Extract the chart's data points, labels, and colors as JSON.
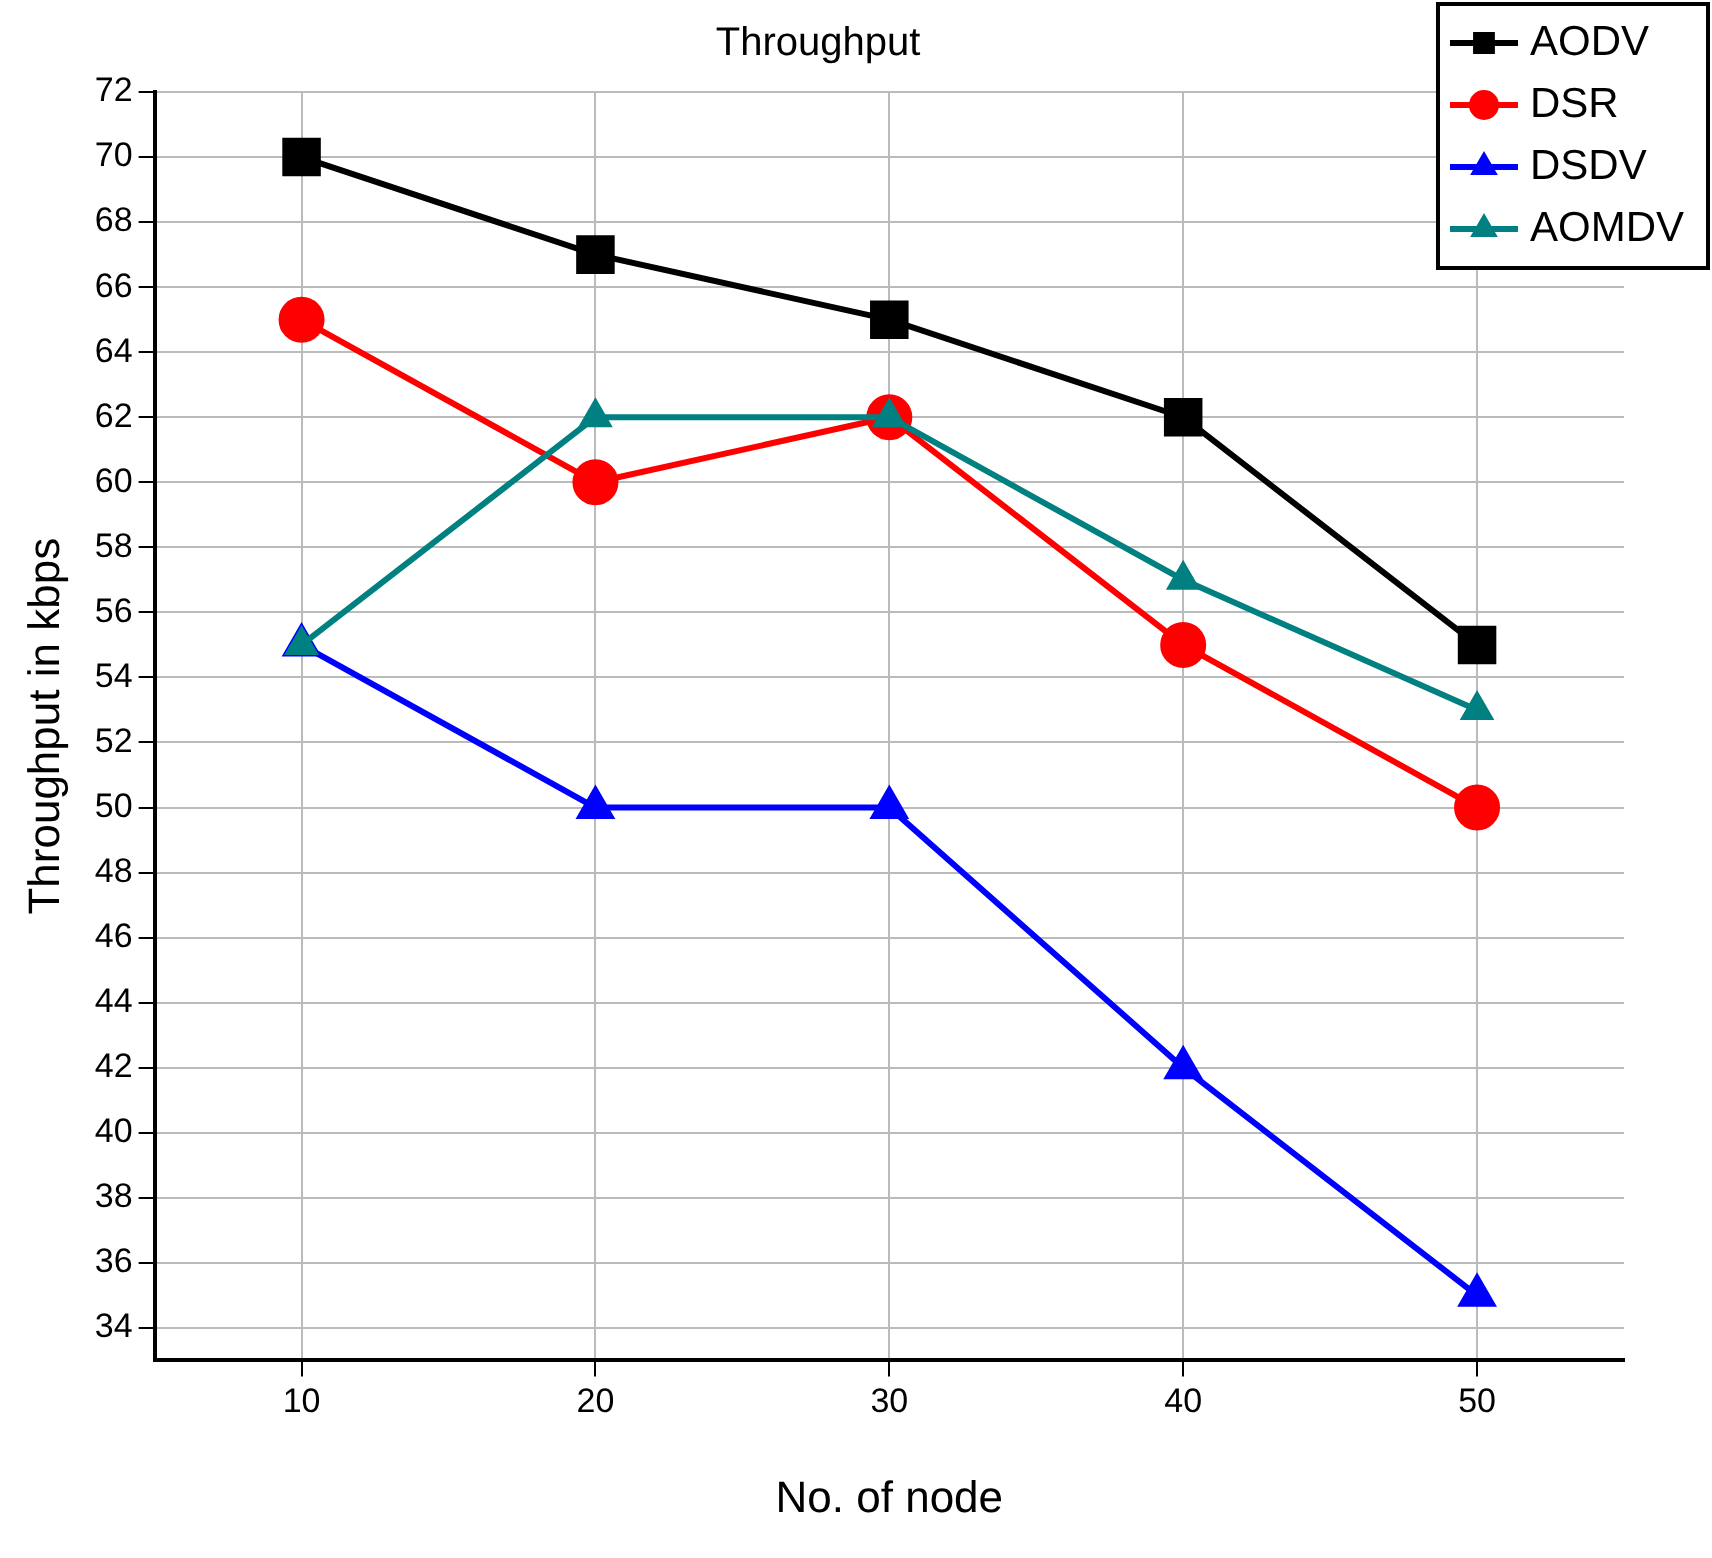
{
  "chart_data": {
    "type": "line",
    "title": "Throughput",
    "xlabel": "No. of node",
    "ylabel": "Throughput in kbps",
    "x": [
      10,
      20,
      30,
      40,
      50
    ],
    "series": [
      {
        "name": "AODV",
        "color": "#000000",
        "marker": "square",
        "values": [
          70,
          67,
          65,
          62,
          55
        ]
      },
      {
        "name": "DSR",
        "color": "#ff0000",
        "marker": "circle",
        "values": [
          65,
          60,
          62,
          55,
          50
        ]
      },
      {
        "name": "DSDV",
        "color": "#0000ff",
        "marker": "triangle",
        "values": [
          55,
          50,
          50,
          42,
          35
        ]
      },
      {
        "name": "AOMDV",
        "color": "#008080",
        "marker": "triangle",
        "values": [
          55,
          62,
          62,
          57,
          53
        ]
      }
    ],
    "xlim": [
      5,
      55
    ],
    "xticks": [
      10,
      20,
      30,
      40,
      50
    ],
    "ylim": [
      33,
      72
    ],
    "yticks": [
      34,
      36,
      38,
      40,
      42,
      44,
      46,
      48,
      50,
      52,
      54,
      56,
      58,
      60,
      62,
      64,
      66,
      68,
      70,
      72
    ],
    "grid": true,
    "legend": "top right",
    "line_style": "solid"
  }
}
